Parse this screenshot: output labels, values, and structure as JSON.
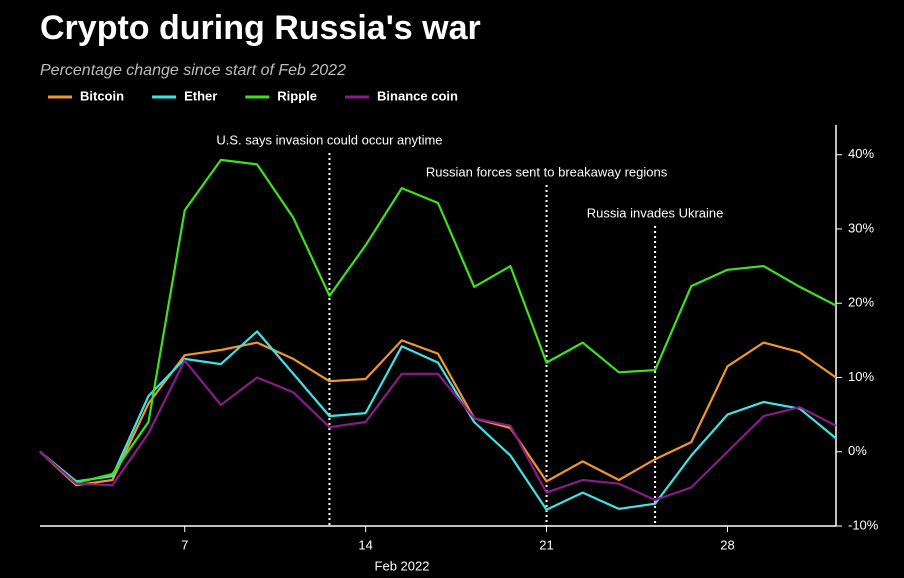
{
  "chart_data": {
    "type": "line",
    "title": "Crypto during Russia's war",
    "subtitle": "Percentage change since start of Feb 2022",
    "x_label": "Feb 2022",
    "categories": [
      null,
      null,
      null,
      null,
      "7",
      null,
      null,
      null,
      null,
      "14",
      null,
      null,
      null,
      null,
      "21",
      null,
      null,
      null,
      null,
      "28",
      null,
      null,
      null
    ],
    "series": [
      {
        "name": "Bitcoin",
        "color": "#f0962a",
        "values": [
          0,
          -4.5,
          -3.8,
          6.5,
          13,
          13.7,
          14.7,
          12.5,
          9.5,
          9.8,
          15,
          13.2,
          4.5,
          3.2,
          -4,
          -1.3,
          -3.8,
          -1,
          1.3,
          11.5,
          14.7,
          13.4,
          10
        ]
      },
      {
        "name": "Ether",
        "color": "#3fe3e6",
        "values": [
          0,
          -4,
          -3.3,
          7.5,
          12.5,
          11.8,
          16.2,
          10.5,
          4.8,
          5.2,
          14.2,
          12,
          4,
          -0.5,
          -7.8,
          -5.5,
          -7.7,
          -7,
          -0.5,
          5,
          6.7,
          5.8,
          1.8
        ]
      },
      {
        "name": "Ripple",
        "color": "#3de11e",
        "values": [
          0,
          -4.2,
          -3,
          4,
          32.5,
          39.3,
          38.7,
          31.5,
          21,
          27.8,
          35.5,
          33.5,
          22.2,
          25,
          12,
          14.7,
          10.7,
          11,
          22.3,
          24.5,
          25,
          22.2,
          19.7
        ]
      },
      {
        "name": "Binance coin",
        "color": "#8b1a8b",
        "values": [
          0,
          -4.3,
          -4.5,
          2.5,
          12.3,
          6.3,
          10,
          8,
          3.3,
          4,
          10.5,
          10.5,
          4.5,
          3.5,
          -5.5,
          -3.8,
          -4.3,
          -6.5,
          -4.8,
          0,
          4.8,
          6,
          3.5
        ]
      }
    ],
    "ylim": [
      -10,
      44
    ],
    "yticks": [
      {
        "value": -10,
        "label": "-10%"
      },
      {
        "value": 0,
        "label": "0%"
      },
      {
        "value": 10,
        "label": "10%"
      },
      {
        "value": 20,
        "label": "20%"
      },
      {
        "value": 30,
        "label": "30%"
      },
      {
        "value": 40,
        "label": "40%"
      }
    ],
    "annotations": [
      {
        "text": "U.S. says invasion could occur anytime"
      },
      {
        "text": "Russian forces sent to breakaway regions"
      },
      {
        "text": "Russia invades Ukraine"
      }
    ]
  }
}
